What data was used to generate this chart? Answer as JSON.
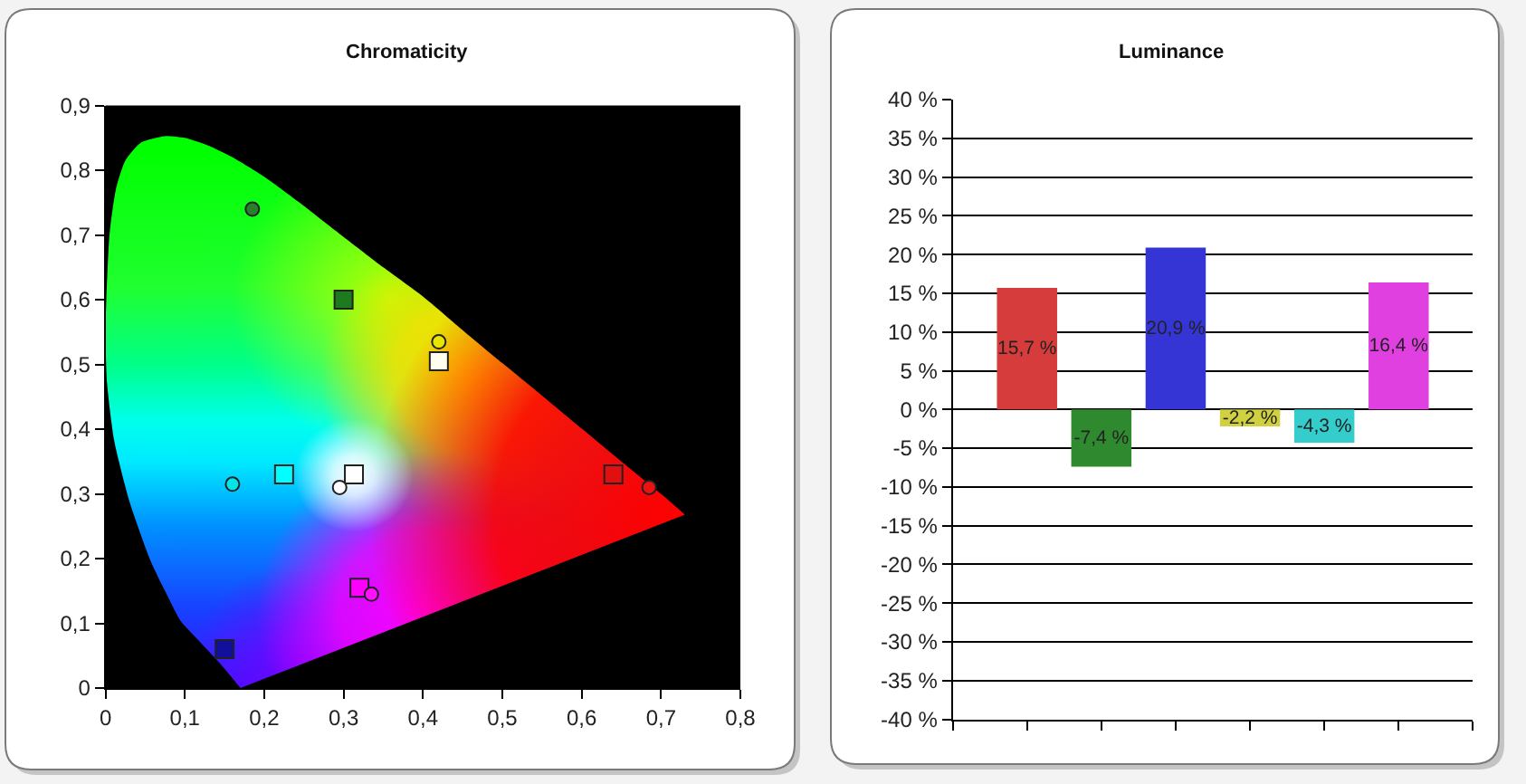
{
  "chart_data": [
    {
      "type": "scatter",
      "title": "Chromaticity",
      "series": [
        {
          "type": "area",
          "x": [
            0.17,
            0.145,
            0.12,
            0.095,
            0.075,
            0.057,
            0.03,
            0.011,
            0.002,
            0.0,
            0.001,
            0.005,
            0.013,
            0.025,
            0.045,
            0.076,
            0.1,
            0.13,
            0.16,
            0.2,
            0.25,
            0.3,
            0.35,
            0.4,
            0.45,
            0.5,
            0.55,
            0.6,
            0.65,
            0.7,
            0.73
          ],
          "values": [
            0.0,
            0.037,
            0.07,
            0.103,
            0.15,
            0.196,
            0.289,
            0.382,
            0.47,
            0.54,
            0.6,
            0.7,
            0.77,
            0.815,
            0.843,
            0.853,
            0.85,
            0.838,
            0.82,
            0.79,
            0.745,
            0.697,
            0.65,
            0.605,
            0.553,
            0.502,
            0.452,
            0.401,
            0.35,
            0.3,
            0.268
          ]
        },
        {
          "marker": "square",
          "x": [
            0.64,
            0.3,
            0.15,
            0.42,
            0.225,
            0.32,
            0.313
          ],
          "values": [
            0.33,
            0.6,
            0.06,
            0.505,
            0.33,
            0.155,
            0.33
          ],
          "colors": [
            "#e01010",
            "#1e7a1e",
            "#10109a",
            "#fffff0",
            "#00ffff",
            "#ff00ff",
            "#ffffff"
          ]
        },
        {
          "marker": "circle",
          "x": [
            0.685,
            0.185,
            0.42,
            0.16,
            0.335,
            0.295
          ],
          "values": [
            0.31,
            0.74,
            0.535,
            0.315,
            0.145,
            0.31
          ],
          "colors": [
            "#ee1111",
            "#2a7f2a",
            "#e6e600",
            "#00e5e5",
            "#ff10ff",
            "#ffffff"
          ]
        }
      ],
      "xlim": [
        0,
        0.8
      ],
      "xticks": [
        0,
        {
          "value": 0.1,
          "label": "0,1"
        },
        {
          "value": 0.2,
          "label": "0,2"
        },
        {
          "value": 0.3,
          "label": "0,3"
        },
        {
          "value": 0.4,
          "label": "0,4"
        },
        {
          "value": 0.5,
          "label": "0,5"
        },
        {
          "value": 0.6,
          "label": "0,6"
        },
        {
          "value": 0.7,
          "label": "0,7"
        },
        {
          "value": 0.8,
          "label": "0,8"
        }
      ],
      "ylim": [
        0,
        0.9
      ],
      "yticks": [
        0,
        {
          "value": 0.1,
          "label": "0,1"
        },
        {
          "value": 0.2,
          "label": "0,2"
        },
        {
          "value": 0.3,
          "label": "0,3"
        },
        {
          "value": 0.4,
          "label": "0,4"
        },
        {
          "value": 0.5,
          "label": "0,5"
        },
        {
          "value": 0.6,
          "label": "0,6"
        },
        {
          "value": 0.7,
          "label": "0,7"
        },
        {
          "value": 0.8,
          "label": "0,8"
        },
        {
          "value": 0.9,
          "label": "0,9"
        }
      ]
    },
    {
      "type": "bar",
      "title": "Luminance",
      "categories": [
        null,
        null,
        null,
        null,
        null,
        null
      ],
      "values": [
        15.7,
        -7.4,
        20.9,
        -2.2,
        -4.3,
        16.4
      ],
      "colors": [
        "#d63c3c",
        "#2f8a2f",
        "#3535d5",
        "#d0d040",
        "#35cccc",
        "#e040e0"
      ],
      "value_labels": [
        "15,7 %",
        "-7,4 %",
        "20,9 %",
        "-2,2 %",
        "-4,3 %",
        "16,4 %"
      ],
      "ylim": [
        -40,
        40
      ],
      "yticks": [
        {
          "value": -40,
          "label": "-40 %"
        },
        {
          "value": -35,
          "label": "-35 %"
        },
        {
          "value": -30,
          "label": "-30 %"
        },
        {
          "value": -25,
          "label": "-25 %"
        },
        {
          "value": -20,
          "label": "-20 %"
        },
        {
          "value": -15,
          "label": "-15 %"
        },
        {
          "value": -10,
          "label": "-10 %"
        },
        {
          "value": -5,
          "label": "-5 %"
        },
        {
          "value": 0,
          "label": "0 %"
        },
        {
          "value": 5,
          "label": "5 %"
        },
        {
          "value": 10,
          "label": "10 %"
        },
        {
          "value": 15,
          "label": "15 %"
        },
        {
          "value": 20,
          "label": "20 %"
        },
        {
          "value": 25,
          "label": "25 %"
        },
        {
          "value": 30,
          "label": "30 %"
        },
        {
          "value": 35,
          "label": "35 %"
        },
        {
          "value": 40,
          "label": "40 %"
        }
      ],
      "grid": "y",
      "tick_labels": "y"
    }
  ]
}
